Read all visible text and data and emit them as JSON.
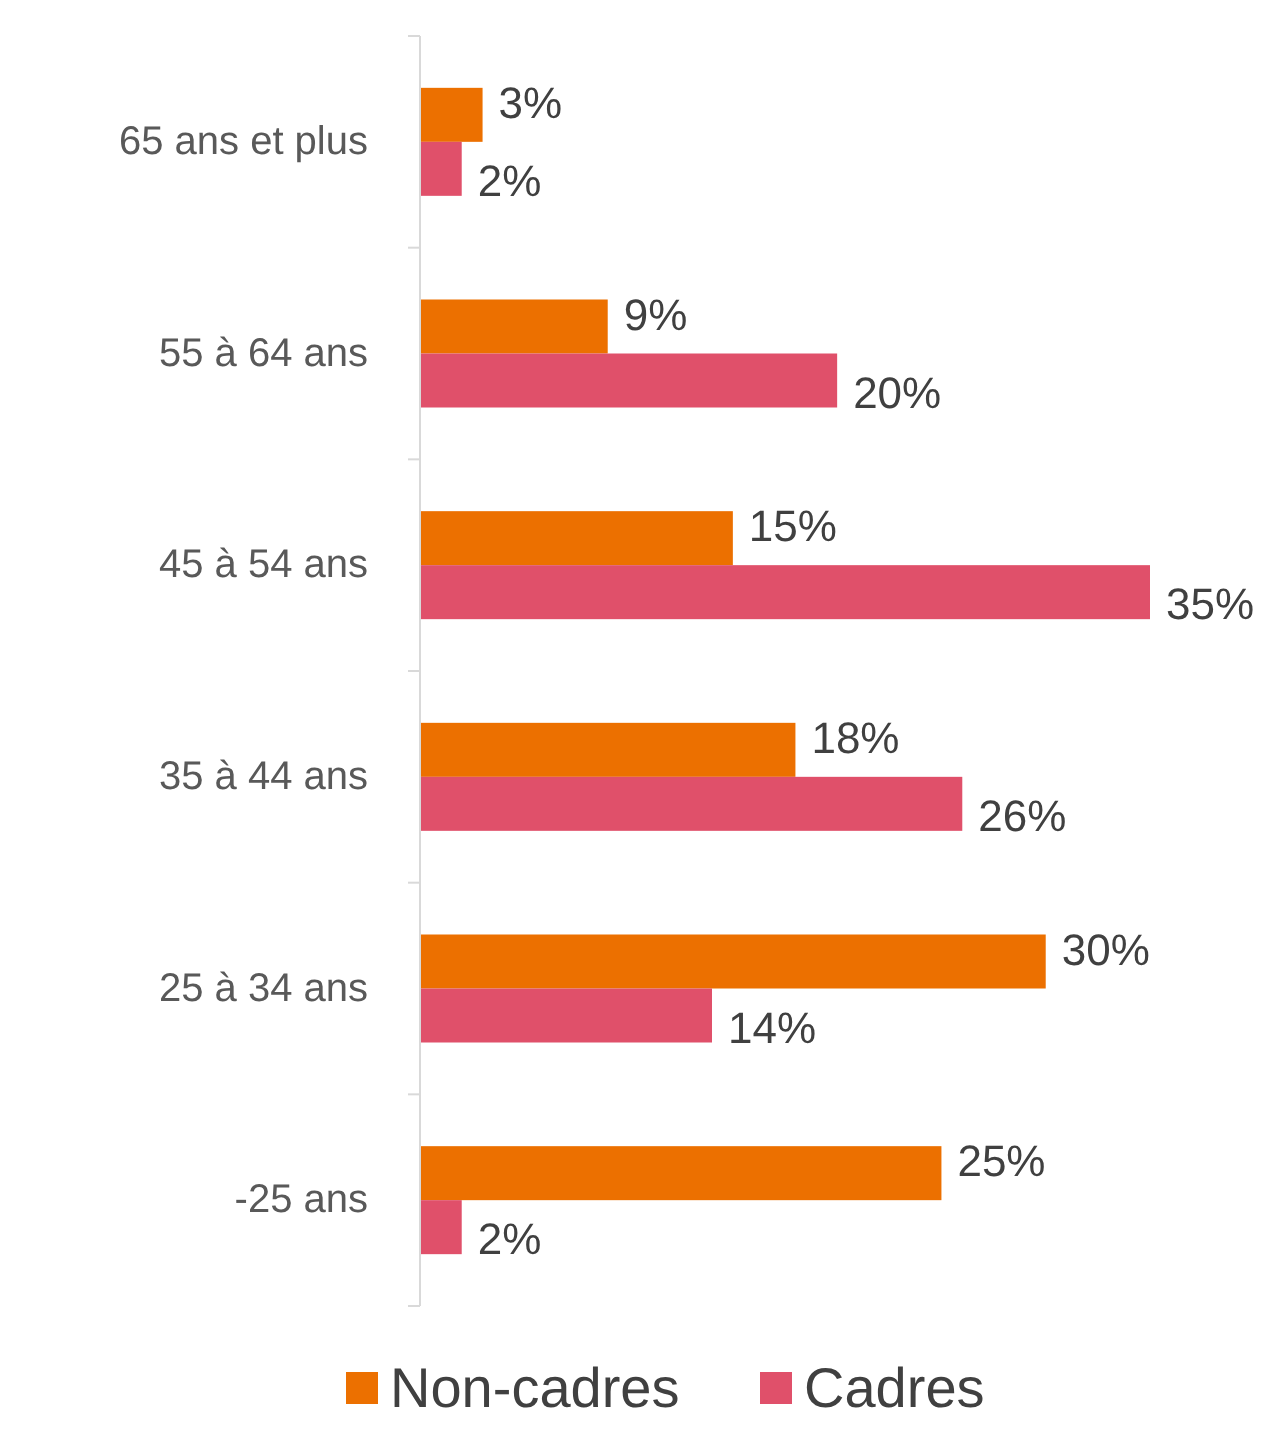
{
  "chart_data": {
    "type": "bar",
    "orientation": "horizontal",
    "categories": [
      "65 ans et plus",
      "55 à 64 ans",
      "45 à 54 ans",
      "35 à 44 ans",
      "25 à 34 ans",
      "-25 ans"
    ],
    "series": [
      {
        "name": "Non-cadres",
        "color": "#ec7000",
        "values": [
          3,
          9,
          15,
          18,
          30,
          25
        ],
        "value_labels": [
          "3%",
          "9%",
          "15%",
          "18%",
          "30%",
          "25%"
        ]
      },
      {
        "name": "Cadres",
        "color": "#e0506a",
        "values": [
          2,
          20,
          35,
          26,
          14,
          2
        ],
        "value_labels": [
          "2%",
          "20%",
          "35%",
          "26%",
          "14%",
          "2%"
        ]
      }
    ],
    "legend": "bottom"
  }
}
